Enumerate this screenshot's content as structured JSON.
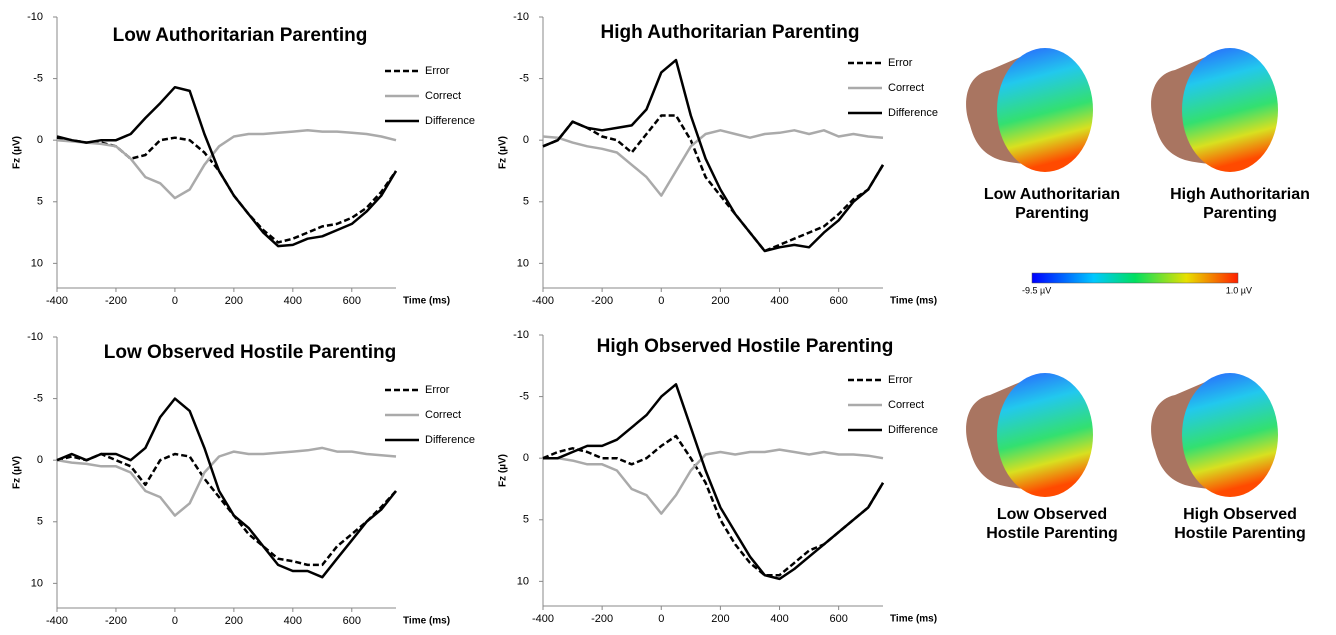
{
  "chart_data": [
    {
      "type": "line",
      "title": "Low Authoritarian Parenting",
      "xlabel": "Time (ms)",
      "ylabel": "Fz (µV)",
      "x": [
        -400,
        -350,
        -300,
        -250,
        -200,
        -150,
        -100,
        -50,
        0,
        50,
        100,
        150,
        200,
        250,
        300,
        350,
        400,
        450,
        500,
        550,
        600,
        650,
        700,
        750
      ],
      "series": [
        {
          "name": "Error",
          "color": "#000000",
          "linestyle": "dashed",
          "values": [
            -0.2,
            0,
            0.2,
            0.2,
            0.5,
            1.5,
            1.2,
            0,
            -0.2,
            0,
            1,
            2.5,
            4.5,
            6,
            7.3,
            8.3,
            8,
            7.5,
            7,
            6.8,
            6.3,
            5.5,
            4.2,
            2.5
          ]
        },
        {
          "name": "Correct",
          "color": "#aaaaaa",
          "linestyle": "solid",
          "values": [
            0,
            0.1,
            0.2,
            0.3,
            0.5,
            1.5,
            3,
            3.5,
            4.7,
            4,
            2,
            0.5,
            -0.3,
            -0.5,
            -0.5,
            -0.6,
            -0.7,
            -0.8,
            -0.7,
            -0.7,
            -0.6,
            -0.5,
            -0.3,
            0
          ]
        },
        {
          "name": "Difference",
          "color": "#000000",
          "linestyle": "solid",
          "values": [
            -0.3,
            0,
            0.2,
            0,
            0,
            -0.5,
            -1.8,
            -3,
            -4.3,
            -4,
            -0.5,
            2.5,
            4.5,
            6,
            7.5,
            8.6,
            8.5,
            8,
            7.8,
            7.3,
            6.8,
            5.8,
            4.5,
            2.5
          ]
        }
      ],
      "xlim": [
        -400,
        750
      ],
      "xticks": [
        -400,
        -200,
        0,
        200,
        400,
        600
      ],
      "ylim": [
        -10,
        12
      ],
      "yticks": [
        -10,
        -5,
        0,
        5,
        10
      ],
      "invert_y": true
    },
    {
      "type": "line",
      "title": "High Authoritarian Parenting",
      "xlabel": "Time (ms)",
      "ylabel": "Fz (µV)",
      "x": [
        -400,
        -350,
        -300,
        -250,
        -200,
        -150,
        -100,
        -50,
        0,
        50,
        100,
        150,
        200,
        250,
        300,
        350,
        400,
        450,
        500,
        550,
        600,
        650,
        700,
        750
      ],
      "series": [
        {
          "name": "Error",
          "color": "#000000",
          "linestyle": "dashed",
          "values": [
            0.5,
            0,
            -1.5,
            -1,
            -0.3,
            0,
            1,
            -0.5,
            -2,
            -2,
            0,
            3,
            4.5,
            6,
            7.5,
            9,
            8.5,
            8,
            7.5,
            7,
            6,
            4.8,
            4,
            2
          ]
        },
        {
          "name": "Correct",
          "color": "#aaaaaa",
          "linestyle": "solid",
          "values": [
            -0.3,
            -0.2,
            0.2,
            0.5,
            0.7,
            1,
            2,
            3,
            4.5,
            2.5,
            0.5,
            -0.5,
            -0.8,
            -0.5,
            -0.2,
            -0.5,
            -0.6,
            -0.8,
            -0.5,
            -0.8,
            -0.3,
            -0.5,
            -0.3,
            -0.2
          ]
        },
        {
          "name": "Difference",
          "color": "#000000",
          "linestyle": "solid",
          "values": [
            0.5,
            0,
            -1.5,
            -1,
            -0.8,
            -1,
            -1.2,
            -2.5,
            -5.5,
            -6.5,
            -2,
            1.5,
            4,
            6,
            7.5,
            9,
            8.7,
            8.5,
            8.7,
            7.5,
            6.5,
            5,
            4,
            2
          ]
        }
      ],
      "xlim": [
        -400,
        750
      ],
      "xticks": [
        -400,
        -200,
        0,
        200,
        400,
        600
      ],
      "ylim": [
        -10,
        12
      ],
      "yticks": [
        -10,
        -5,
        0,
        5,
        10
      ],
      "invert_y": true
    },
    {
      "type": "line",
      "title": "Low Observed Hostile Parenting",
      "xlabel": "Time (ms)",
      "ylabel": "Fz (µV)",
      "x": [
        -400,
        -350,
        -300,
        -250,
        -200,
        -150,
        -100,
        -50,
        0,
        50,
        100,
        150,
        200,
        250,
        300,
        350,
        400,
        450,
        500,
        550,
        600,
        650,
        700,
        750
      ],
      "series": [
        {
          "name": "Error",
          "color": "#000000",
          "linestyle": "dashed",
          "values": [
            0,
            -0.3,
            0,
            -0.5,
            0,
            0.5,
            2,
            0,
            -0.5,
            -0.3,
            1.5,
            3,
            4.5,
            6,
            7,
            8,
            8.2,
            8.5,
            8.5,
            7,
            6,
            5,
            3.8,
            2.5
          ]
        },
        {
          "name": "Correct",
          "color": "#aaaaaa",
          "linestyle": "solid",
          "values": [
            0,
            0.2,
            0.3,
            0.5,
            0.5,
            1,
            2.5,
            3,
            4.5,
            3.5,
            1,
            -0.3,
            -0.7,
            -0.5,
            -0.5,
            -0.6,
            -0.7,
            -0.8,
            -1,
            -0.7,
            -0.7,
            -0.5,
            -0.4,
            -0.3
          ]
        },
        {
          "name": "Difference",
          "color": "#000000",
          "linestyle": "solid",
          "values": [
            0,
            -0.5,
            0,
            -0.5,
            -0.5,
            0,
            -1,
            -3.5,
            -5,
            -4,
            -1,
            2.5,
            4.5,
            5.5,
            7,
            8.5,
            9,
            9,
            9.5,
            8,
            6.5,
            5,
            4,
            2.5
          ]
        }
      ],
      "xlim": [
        -400,
        750
      ],
      "xticks": [
        -400,
        -200,
        0,
        200,
        400,
        600
      ],
      "ylim": [
        -10,
        12
      ],
      "yticks": [
        -10,
        -5,
        0,
        5,
        10
      ],
      "invert_y": true
    },
    {
      "type": "line",
      "title": "High Observed Hostile Parenting",
      "xlabel": "Time (ms)",
      "ylabel": "Fz (µV)",
      "x": [
        -400,
        -350,
        -300,
        -250,
        -200,
        -150,
        -100,
        -50,
        0,
        50,
        100,
        150,
        200,
        250,
        300,
        350,
        400,
        450,
        500,
        550,
        600,
        650,
        700,
        750
      ],
      "series": [
        {
          "name": "Error",
          "color": "#000000",
          "linestyle": "dashed",
          "values": [
            0,
            -0.5,
            -0.8,
            -0.5,
            0,
            0,
            0.5,
            0,
            -1,
            -1.8,
            0,
            2,
            5,
            7,
            8.5,
            9.5,
            9.5,
            8.5,
            7.5,
            7,
            6,
            5,
            4,
            2
          ]
        },
        {
          "name": "Correct",
          "color": "#aaaaaa",
          "linestyle": "solid",
          "values": [
            0,
            0,
            0.2,
            0.5,
            0.5,
            1,
            2.5,
            3,
            4.5,
            3,
            1,
            -0.3,
            -0.5,
            -0.3,
            -0.5,
            -0.5,
            -0.7,
            -0.5,
            -0.3,
            -0.5,
            -0.3,
            -0.3,
            -0.2,
            0
          ]
        },
        {
          "name": "Difference",
          "color": "#000000",
          "linestyle": "solid",
          "values": [
            0,
            0,
            -0.5,
            -1,
            -1,
            -1.5,
            -2.5,
            -3.5,
            -5,
            -6,
            -2.5,
            1,
            4,
            6,
            8,
            9.5,
            9.8,
            9,
            8,
            7,
            6,
            5,
            4,
            2
          ]
        }
      ],
      "xlim": [
        -400,
        750
      ],
      "xticks": [
        -400,
        -200,
        0,
        200,
        400,
        600
      ],
      "ylim": [
        -10,
        12
      ],
      "yticks": [
        -10,
        -5,
        0,
        5,
        10
      ],
      "invert_y": true
    }
  ],
  "topomaps": [
    [
      "Low Authoritarian",
      "Parenting"
    ],
    [
      "High Authoritarian",
      "Parenting"
    ],
    [
      "Low Observed",
      "Hostile Parenting"
    ],
    [
      "High Observed",
      "Hostile Parenting"
    ]
  ],
  "colorbar": {
    "min_label": "-9.5 µV",
    "max_label": "1.0 µV"
  }
}
